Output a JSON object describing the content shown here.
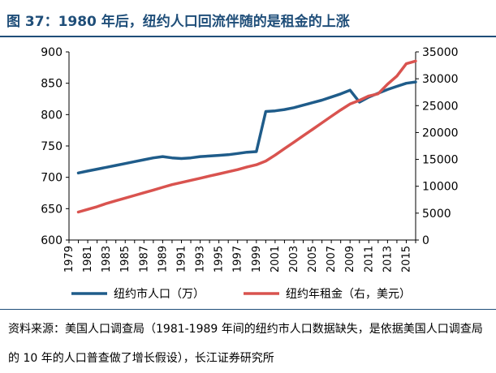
{
  "header": {
    "title": "图 37：1980 年后，纽约人口回流伴随的是租金的上涨"
  },
  "footer": {
    "source": "资料来源：美国人口调查局（1981-1989 年间的纽约市人口数据缺失，是依据美国人口调查局的 10 年的人口普查做了增长假设），长江证券研究所"
  },
  "colors": {
    "title": "#1f4e79",
    "population": "#1f5c8a",
    "rent": "#d9534f"
  },
  "chart_data": {
    "type": "line",
    "title": "",
    "xlabel": "",
    "ylabel": "",
    "x": [
      1979,
      1980,
      1981,
      1982,
      1983,
      1984,
      1985,
      1986,
      1987,
      1988,
      1989,
      1990,
      1991,
      1992,
      1993,
      1994,
      1995,
      1996,
      1997,
      1998,
      1999,
      2000,
      2001,
      2002,
      2003,
      2004,
      2005,
      2006,
      2007,
      2008,
      2009,
      2010,
      2011,
      2012,
      2013,
      2014,
      2015,
      2016
    ],
    "xticks": [
      "1979",
      "1981",
      "1983",
      "1985",
      "1987",
      "1989",
      "1991",
      "1993",
      "1995",
      "1997",
      "1999",
      "2001",
      "2003",
      "2005",
      "2007",
      "2009",
      "2011",
      "2013",
      "2015"
    ],
    "ylim_left": [
      600,
      900
    ],
    "yticks_left": [
      "600",
      "650",
      "700",
      "750",
      "800",
      "850",
      "900"
    ],
    "ylim_right": [
      0,
      35000
    ],
    "yticks_right": [
      "0",
      "5000",
      "10000",
      "15000",
      "20000",
      "25000",
      "30000",
      "35000"
    ],
    "legend_position": "bottom",
    "series": [
      {
        "name": "纽约市人口（万）",
        "axis": "left",
        "values": [
          null,
          707,
          710,
          713,
          716,
          719,
          722,
          725,
          728,
          731,
          733,
          731,
          730,
          731,
          733,
          734,
          735,
          736,
          738,
          740,
          741,
          805,
          806,
          808,
          811,
          815,
          819,
          823,
          828,
          833,
          839,
          820,
          828,
          834,
          840,
          845,
          850,
          852
        ]
      },
      {
        "name": "纽约年租金（右，美元）",
        "axis": "right",
        "values": [
          null,
          5200,
          5700,
          6200,
          6800,
          7300,
          7800,
          8300,
          8800,
          9300,
          9800,
          10300,
          10700,
          11100,
          11500,
          11900,
          12300,
          12700,
          13100,
          13600,
          14000,
          14700,
          15800,
          17000,
          18200,
          19400,
          20600,
          21800,
          23000,
          24200,
          25300,
          26000,
          26800,
          27200,
          29000,
          30500,
          32800,
          33300
        ]
      }
    ]
  }
}
